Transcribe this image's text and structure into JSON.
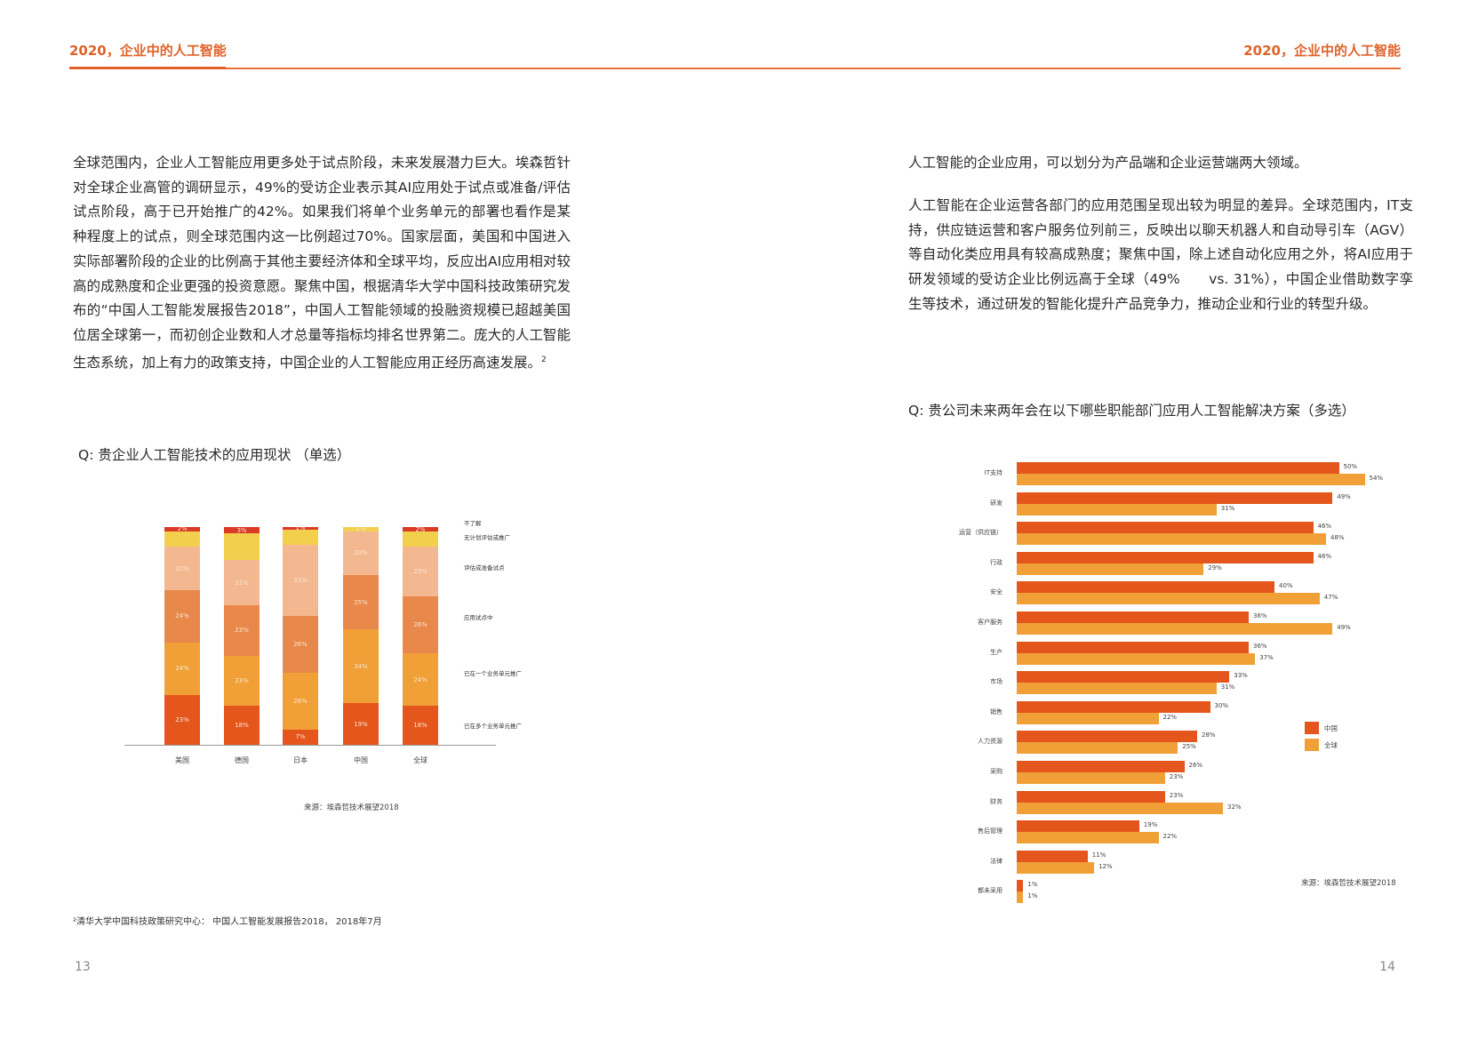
{
  "header": {
    "left_title": "2020，企业中的人工智能",
    "right_title": "2020，企业中的人工智能",
    "accent_color": "#e0622a"
  },
  "left_page": {
    "paragraph": "全球范围内，企业人工智能应用更多处于试点阶段，未来发展潜力巨大。埃森哲针对全球企业高管的调研显示，49%的受访企业表示其AI应用处于试点或准备/评估试点阶段，高于已开始推广的42%。如果我们将单个业务单元的部署也看作是某种程度上的试点，则全球范围内这一比例超过70%。国家层面，美国和中国进入实际部署阶段的企业的比例高于其他主要经济体和全球平均，反应出AI应用相对较高的成熟度和企业更强的投资意愿。聚焦中国，根据清华大学中国科技政策研究发布的“中国人工智能发展报告2018”，中国人工智能领域的投融资规模已超越美国位居全球第一，而初创企业数和人才总量等指标均排名世界第二。庞大的人工智能生态系统，加上有力的政策支持，中国企业的人工智能应用正经历高速发展。",
    "paragraph_footnote_mark": "2",
    "question": "Q: 贵企业人工智能技术的应用现状 （单选）",
    "source": "来源：埃森哲技术展望2018",
    "footnote": "²清华大学中国科技政策研究中心： 中国人工智能发展报告2018， 2018年7月",
    "page_number": "13"
  },
  "right_page": {
    "paragraph1": "人工智能的企业应用，可以划分为产品端和企业运营端两大领域。",
    "paragraph2": "人工智能在企业运营各部门的应用范围呈现出较为明显的差异。全球范围内，IT支持，供应链运营和客户服务位列前三，反映出以聊天机器人和自动导引车（AGV）等自动化类应用具有较高成熟度；聚焦中国，除上述自动化应用之外，将AI应用于研发领域的受访企业比例远高于全球（49%　　vs. 31%），中国企业借助数字孪生等技术，通过研发的智能化提升产品竞争力，推动企业和行业的转型升级。",
    "question": "Q: 贵公司未来两年会在以下哪些职能部门应用人工智能解决方案（多选）",
    "source": "来源：埃森哲技术展望2018",
    "page_number": "14"
  },
  "chart_data": [
    {
      "type": "bar",
      "stacked": true,
      "title": "Q: 贵企业人工智能技术的应用现状 （单选）",
      "categories": [
        "美国",
        "德国",
        "日本",
        "中国",
        "全球"
      ],
      "series": [
        {
          "name": "已在多个业务单元推广",
          "color": "#e4561b",
          "values": [
            23,
            18,
            7,
            19,
            18
          ]
        },
        {
          "name": "已在一个业务单元推广",
          "color": "#f0a036",
          "values": [
            24,
            23,
            26,
            34,
            24
          ]
        },
        {
          "name": "应用试点中",
          "color": "#e8884a",
          "values": [
            24,
            23,
            26,
            25,
            26
          ]
        },
        {
          "name": "评估或准备试点",
          "color": "#f3b890",
          "values": [
            20,
            21,
            33,
            20,
            23
          ]
        },
        {
          "name": "无计划评估或推广",
          "color": "#f2d04e",
          "values": [
            7,
            12,
            7,
            2,
            7
          ]
        },
        {
          "name": "不了解",
          "color": "#db3a24",
          "values": [
            2,
            3,
            1,
            0,
            2
          ]
        }
      ],
      "labels": [
        [
          "23%",
          "18%",
          "7%",
          "19%",
          "18%"
        ],
        [
          "24%",
          "23%",
          "26%",
          "34%",
          "24%"
        ],
        [
          "24%",
          "23%",
          "26%",
          "25%",
          "26%"
        ],
        [
          "20%",
          "21%",
          "33%",
          "20%",
          "23%"
        ],
        [
          "",
          "",
          "",
          "2%",
          ""
        ],
        [
          "2%",
          "3%",
          "1%",
          "",
          "2%"
        ]
      ],
      "legend_position": "right",
      "xlabel": "",
      "ylabel": "",
      "source": "来源：埃森哲技术展望2018"
    },
    {
      "type": "bar",
      "orientation": "horizontal",
      "title": "Q: 贵公司未来两年会在以下哪些职能部门应用人工智能解决方案（多选）",
      "categories": [
        "IT支持",
        "研发",
        "运营（供应链）",
        "行政",
        "安全",
        "客户服务",
        "生产",
        "市场",
        "销售",
        "人力资源",
        "采购",
        "财务",
        "售后管理",
        "法律",
        "都未采用"
      ],
      "series": [
        {
          "name": "中国",
          "color": "#e4561b",
          "values": [
            50,
            49,
            46,
            46,
            40,
            36,
            36,
            33,
            30,
            28,
            26,
            23,
            19,
            11,
            1
          ]
        },
        {
          "name": "全球",
          "color": "#f0a036",
          "values": [
            54,
            31,
            48,
            29,
            47,
            49,
            37,
            31,
            22,
            25,
            23,
            32,
            22,
            12,
            1
          ]
        }
      ],
      "legend_position": "right",
      "xlim": [
        0,
        60
      ],
      "source": "来源：埃森哲技术展望2018"
    }
  ]
}
